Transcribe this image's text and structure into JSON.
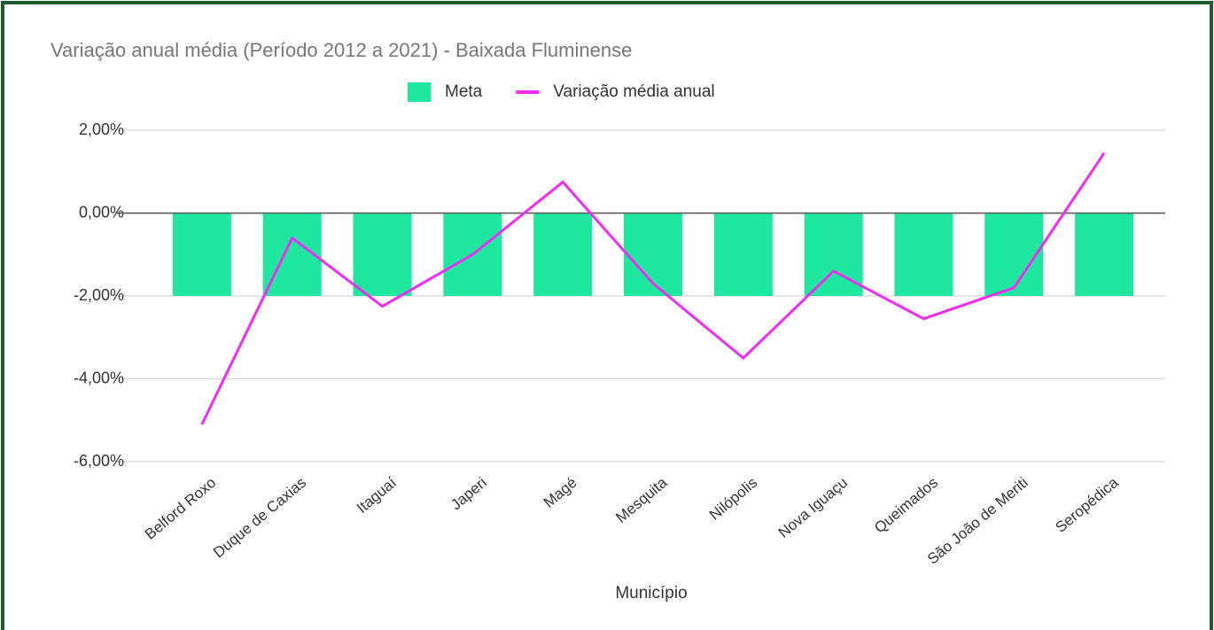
{
  "chart_data": {
    "type": "combo",
    "title": "Variação anual média (Período 2012 a 2021) - Baixada Fluminense",
    "x_label": "Município",
    "categories": [
      "Belford Roxo",
      "Duque de Caxias",
      "Itaguaí",
      "Japeri",
      "Magé",
      "Mesquita",
      "Nilópolis",
      "Nova Iguaçu",
      "Queimados",
      "São João de Meriti",
      "Seropédica"
    ],
    "series": [
      {
        "name": "Meta",
        "type": "bar",
        "color": "#1ee8a0",
        "values": [
          -2,
          -2,
          -2,
          -2,
          -2,
          -2,
          -2,
          -2,
          -2,
          -2,
          -2
        ]
      },
      {
        "name": "Variação média anual",
        "type": "line",
        "color": "#f02cf0",
        "values": [
          -5.1,
          -0.6,
          -2.25,
          -1.0,
          0.75,
          -1.7,
          -3.5,
          -1.4,
          -2.55,
          -1.8,
          1.45
        ]
      }
    ],
    "ylim": [
      -6,
      2
    ],
    "yticks": [
      {
        "value": -6,
        "label": "-6,00%"
      },
      {
        "value": -4,
        "label": "-4,00%"
      },
      {
        "value": -2,
        "label": "-2,00%"
      },
      {
        "value": 0,
        "label": "0,00%"
      },
      {
        "value": 2,
        "label": "2,00%"
      }
    ],
    "grid": true,
    "legend": "top"
  }
}
